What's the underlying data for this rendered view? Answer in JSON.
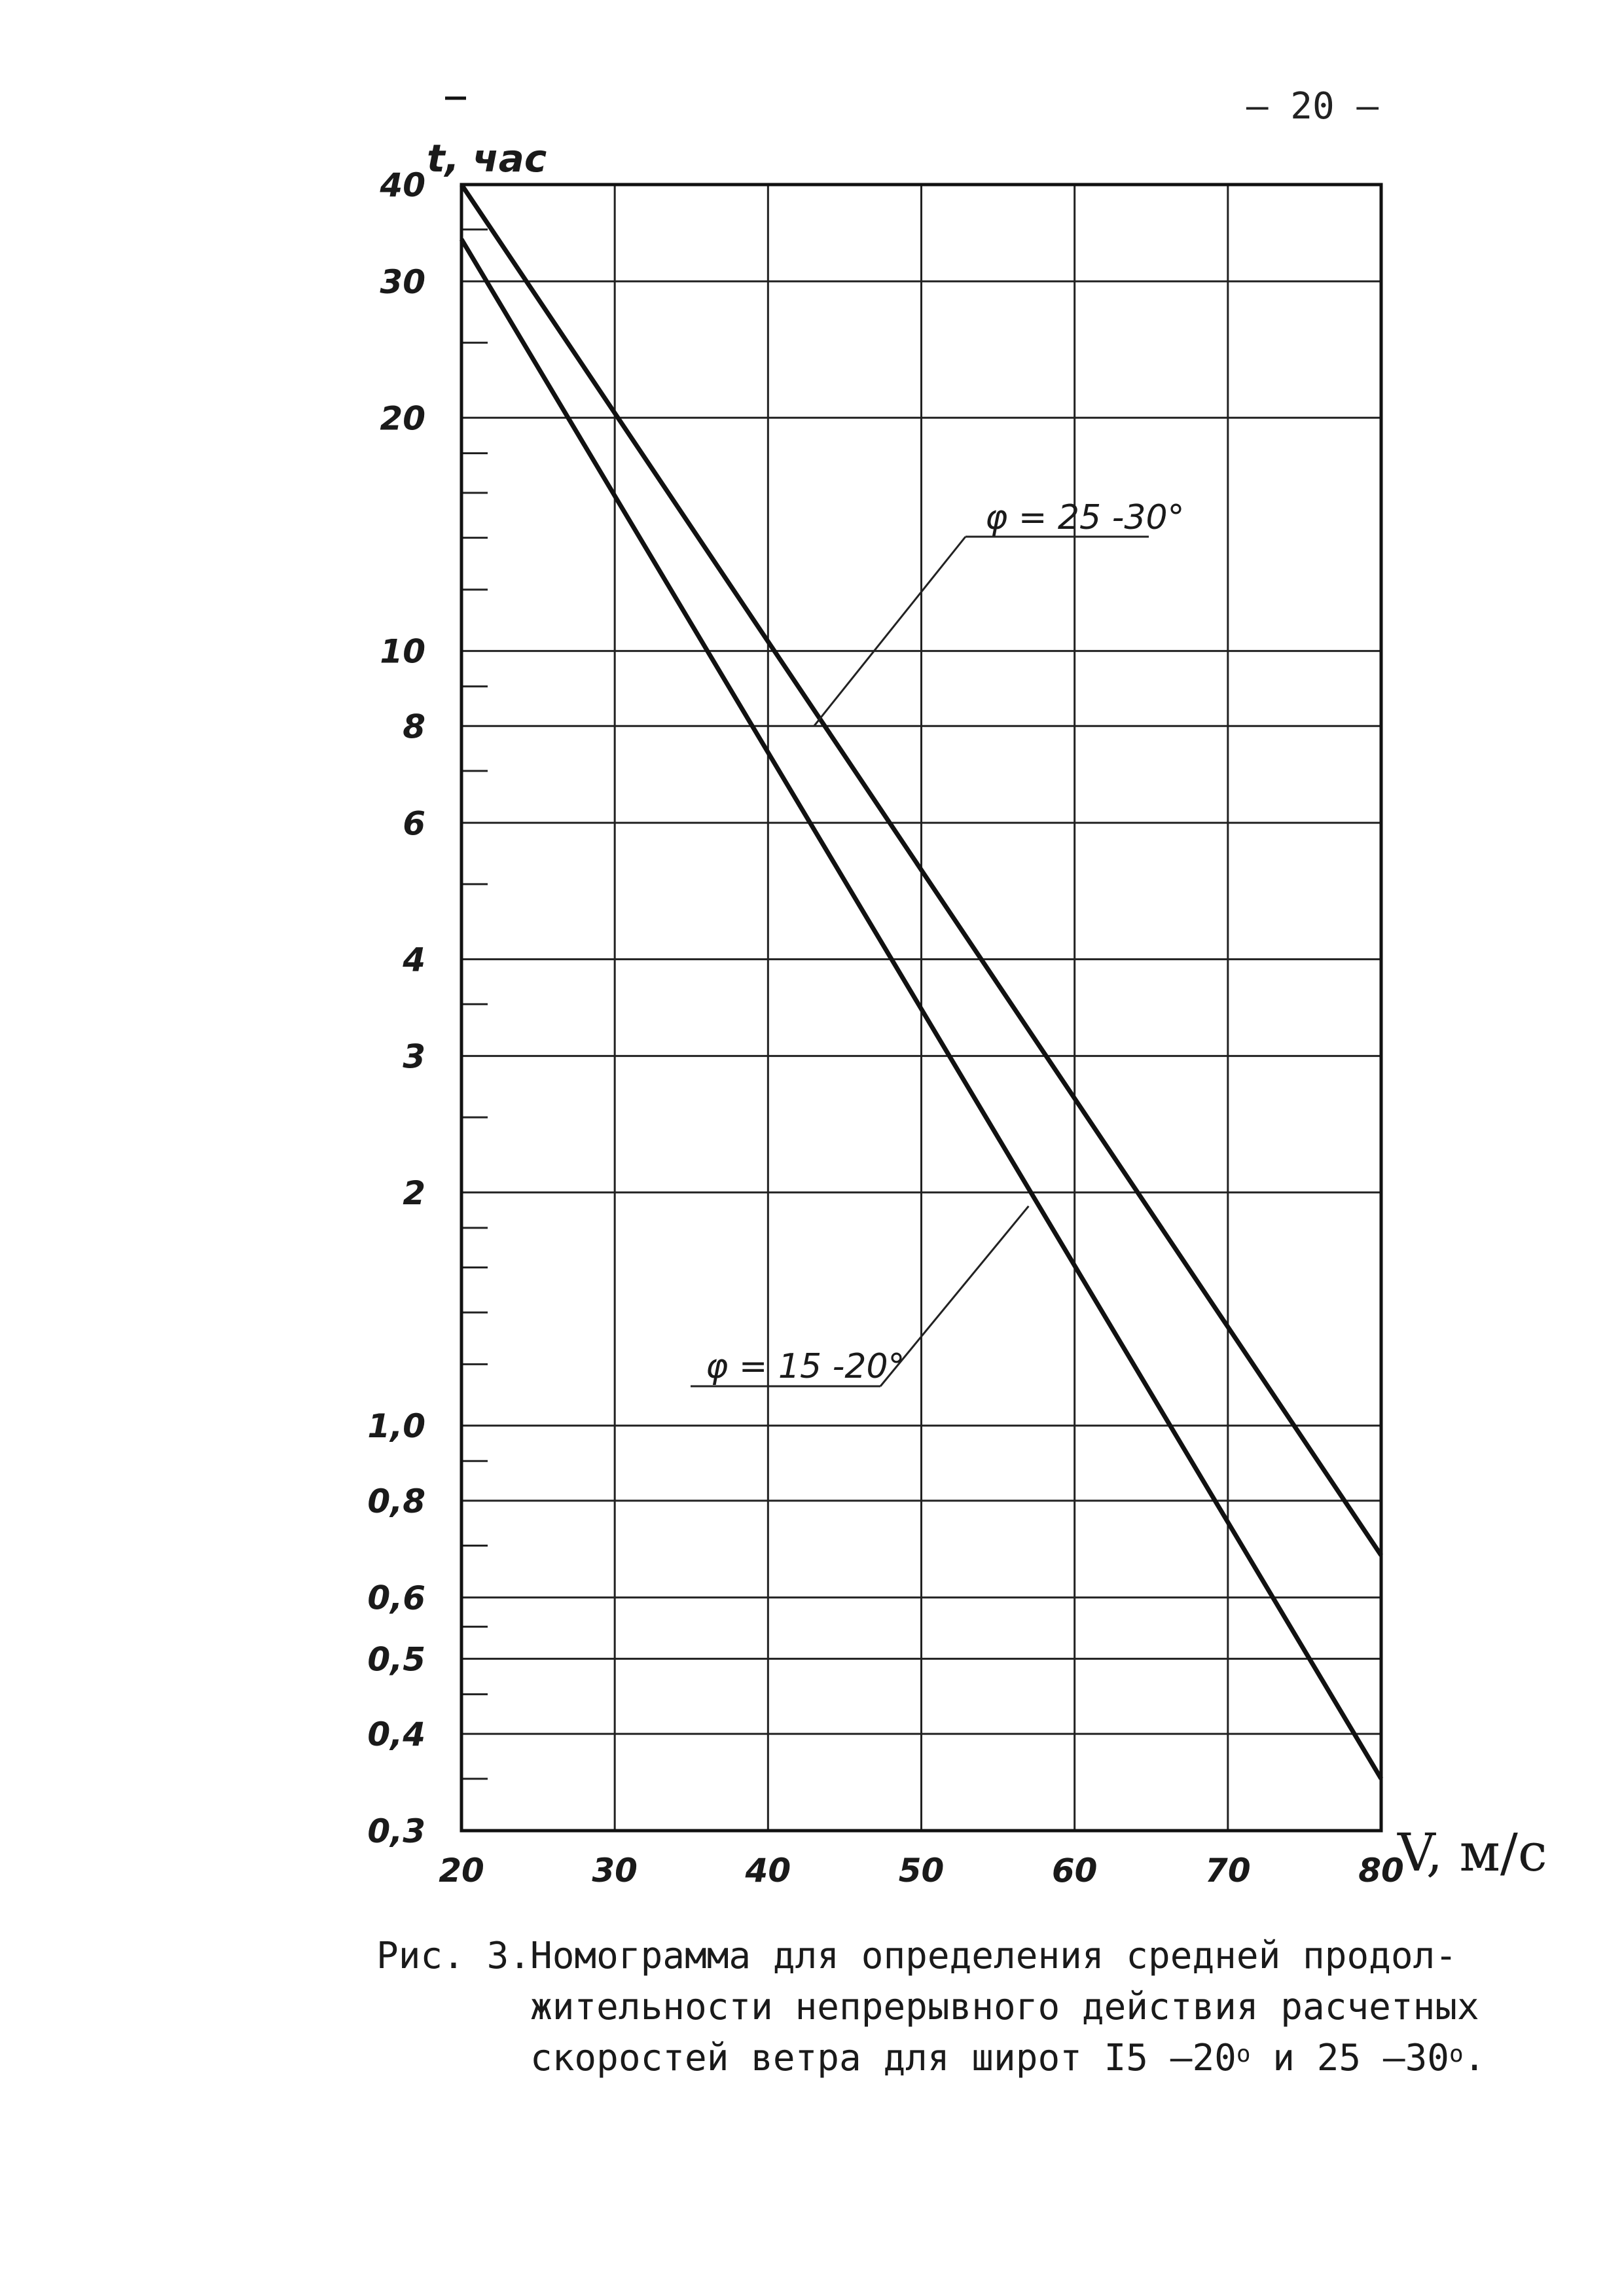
{
  "page_number": "– 20 –",
  "chart_data": {
    "type": "line",
    "xlabel": "V, м/с",
    "ylabel": "t, час",
    "xlim": [
      20,
      80
    ],
    "ylim": [
      0.3,
      40
    ],
    "y_scale": "log",
    "grid": true,
    "x_ticks": [
      20,
      30,
      40,
      50,
      60,
      70,
      80
    ],
    "x_tick_labels": [
      "20",
      "30",
      "40",
      "50",
      "60",
      "70",
      "80"
    ],
    "y_major_ticks": [
      0.3,
      0.4,
      0.5,
      0.6,
      0.8,
      1.0,
      2,
      3,
      4,
      6,
      8,
      10,
      20,
      30,
      40
    ],
    "y_tick_labels": [
      "0,3",
      "0,4",
      "0,5",
      "0,6",
      "0,8",
      "1,0",
      "2",
      "3",
      "4",
      "6",
      "8",
      "10",
      "20",
      "30",
      "40"
    ],
    "y_minor_ticks": [
      0.35,
      0.45,
      0.55,
      0.7,
      0.9,
      1.2,
      1.4,
      1.6,
      1.8,
      2.5,
      3.5,
      5,
      7,
      9,
      12,
      14,
      16,
      18,
      25,
      35
    ],
    "series": [
      {
        "name": "φ = 25 -30°",
        "x": [
          20,
          80
        ],
        "y": [
          40,
          0.68
        ]
      },
      {
        "name": "φ = 15 -20°",
        "x": [
          20,
          80
        ],
        "y": [
          34,
          0.35
        ]
      }
    ],
    "annotations": [
      {
        "text": "φ = 25 -30°",
        "points_to": {
          "x": 43,
          "y": 8.0
        }
      },
      {
        "text": "φ = 15 -20°",
        "points_to": {
          "x": 57,
          "y": 1.92
        }
      }
    ]
  },
  "caption": {
    "prefix": "Рис. 3.",
    "lines": [
      "Номограмма для определения средней продол-",
      "жительности непрерывного действия расчетных"
    ],
    "last_line_parts": [
      "скоростей ветра для широт I5 –20",
      "o",
      " и 25 –30",
      "o",
      "."
    ]
  }
}
